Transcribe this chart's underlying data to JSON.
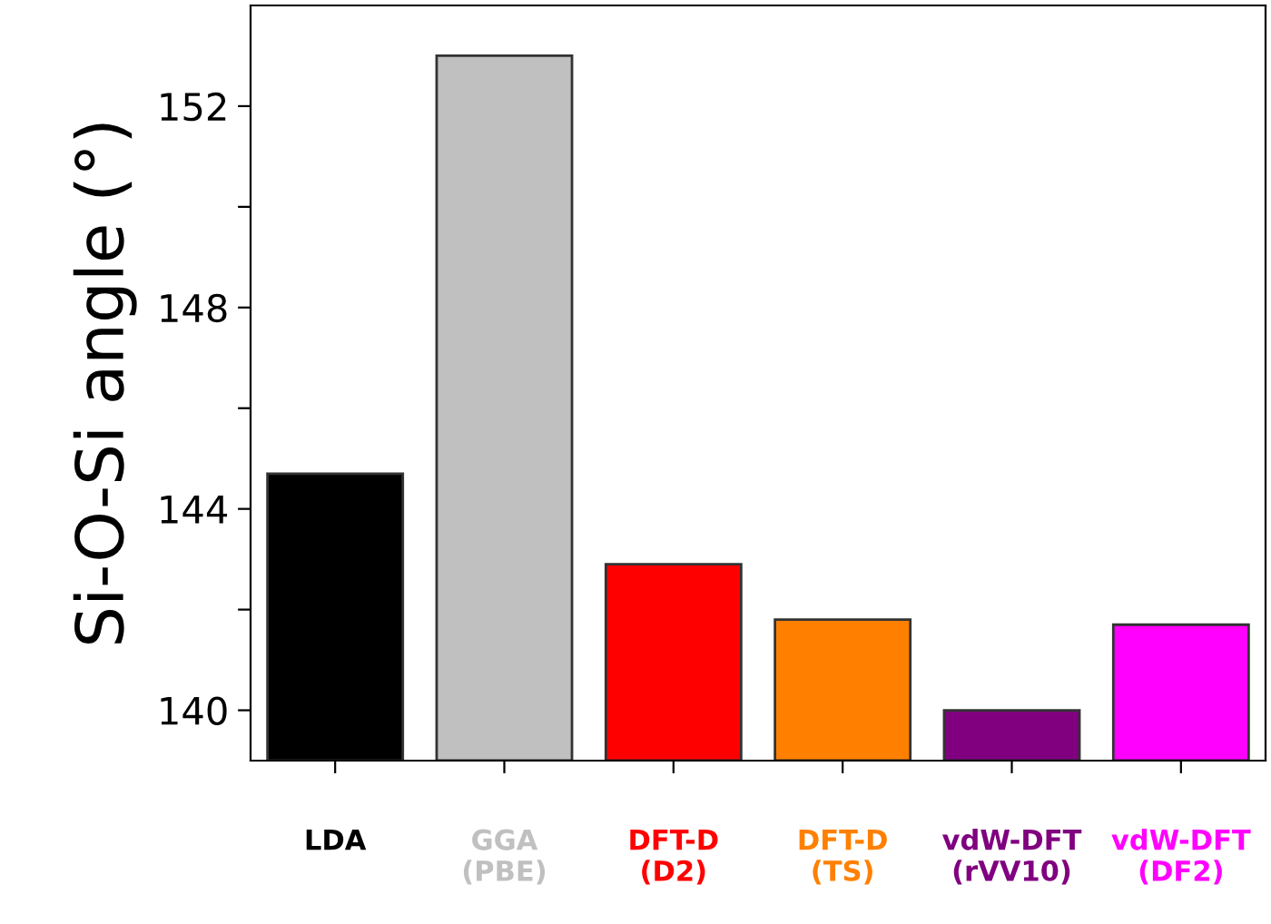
{
  "chart_data": {
    "type": "bar",
    "ylabel": "Si-O-Si angle (°)",
    "categories": [
      "LDA",
      "GGA\n(PBE)",
      "DFT-D\n(D2)",
      "DFT-D\n(TS)",
      "vdW-DFT\n(rVV10)",
      "vdW-DFT\n(DF2)"
    ],
    "values": [
      144.7,
      153.0,
      142.9,
      141.8,
      140.0,
      141.7
    ],
    "colors": [
      "#000000",
      "#c0c0c0",
      "#ff0000",
      "#ff8000",
      "#800080",
      "#ff00ff"
    ],
    "ylim": [
      139,
      154
    ],
    "yticks": [
      140,
      {
        "value": 142,
        "label": null
      },
      144,
      {
        "value": 146,
        "label": null
      },
      148,
      {
        "value": 150,
        "label": null
      },
      152
    ],
    "grid": false,
    "legend": false
  }
}
